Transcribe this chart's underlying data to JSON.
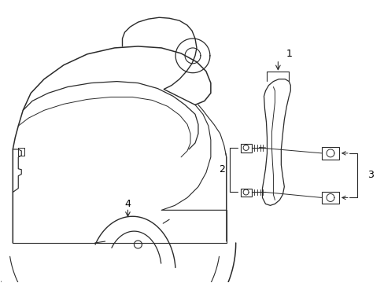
{
  "bg_color": "#ffffff",
  "line_color": "#2a2a2a",
  "lw_main": 1.0,
  "lw_detail": 0.7,
  "figsize": [
    4.89,
    3.6
  ],
  "dpi": 100
}
